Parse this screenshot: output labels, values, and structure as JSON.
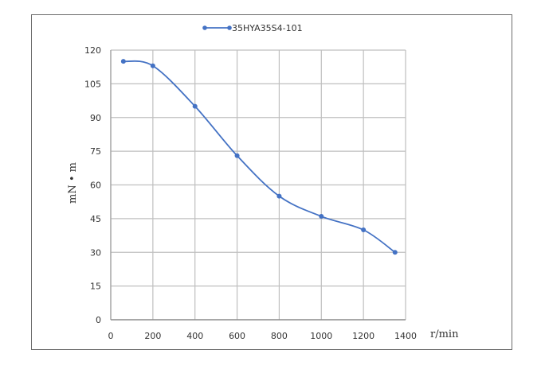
{
  "chart_data": {
    "type": "line",
    "title": "",
    "legend": {
      "position": "top",
      "entries": [
        "35HYA35S4-101"
      ]
    },
    "xlabel": "r/min",
    "ylabel": "mN • m",
    "xlim": [
      0,
      1400
    ],
    "ylim": [
      0,
      120
    ],
    "xticks": [
      0,
      200,
      400,
      600,
      800,
      1000,
      1200,
      1400
    ],
    "yticks": [
      0,
      15,
      30,
      45,
      60,
      75,
      90,
      105,
      120
    ],
    "grid": true,
    "series": [
      {
        "name": "35HYA35S4-101",
        "color": "#4472c4",
        "x": [
          60,
          200,
          400,
          600,
          800,
          1000,
          1200,
          1350
        ],
        "y": [
          115,
          113,
          95,
          73,
          55,
          46,
          40,
          30
        ]
      }
    ]
  },
  "labels": {
    "legend": "35HYA35S4-101",
    "xunit": "r/min",
    "yunit": "mN • m"
  }
}
